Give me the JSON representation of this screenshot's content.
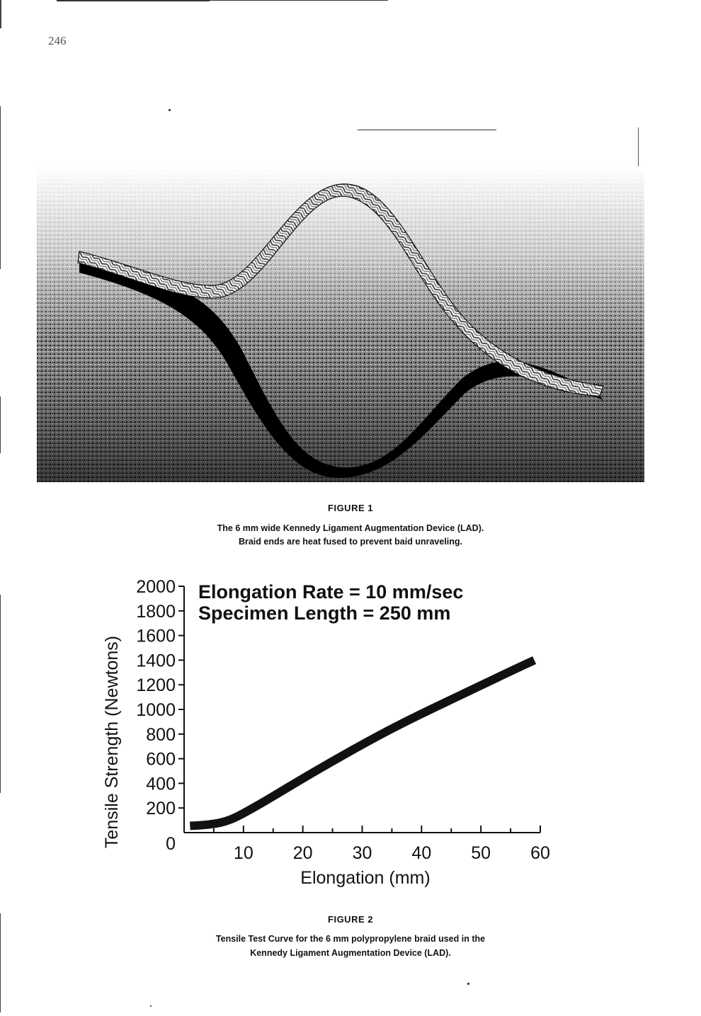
{
  "page": {
    "page_number": "246"
  },
  "figure1": {
    "label": "FIGURE 1",
    "caption_line1": "The 6 mm wide Kennedy Ligament Augmentation Device (LAD).",
    "caption_line2": "Braid ends are heat fused to prevent baid unraveling."
  },
  "figure2": {
    "label": "FIGURE 2",
    "caption_line1": "Tensile Test Curve for the 6 mm polypropylene braid used in the",
    "caption_line2": "Kennedy Ligament Augmentation Device (LAD)."
  },
  "chart_data": {
    "type": "line",
    "annotation_line1": "Elongation Rate = 10 mm/sec",
    "annotation_line2": "Specimen Length = 250 mm",
    "xlabel": "Elongation (mm)",
    "ylabel": "Tensile Strength (Newtons)",
    "xlim": [
      0,
      60
    ],
    "ylim": [
      0,
      2000
    ],
    "x_ticks": [
      "10",
      "20",
      "30",
      "40",
      "50",
      "60"
    ],
    "x_tick_values": [
      10,
      20,
      30,
      40,
      50,
      60
    ],
    "y_zero_label": "0",
    "y_ticks": [
      "200",
      "400",
      "600",
      "800",
      "1000",
      "1200",
      "1400",
      "1600",
      "1800",
      "2000"
    ],
    "y_tick_values": [
      200,
      400,
      600,
      800,
      1000,
      1200,
      1400,
      1600,
      1800,
      2000
    ],
    "series": [
      {
        "x": [
          1,
          3,
          5,
          7,
          9,
          12,
          15,
          20,
          25,
          30,
          35,
          40,
          45,
          50,
          55,
          59
        ],
        "y": [
          55,
          60,
          70,
          90,
          130,
          210,
          295,
          440,
          580,
          715,
          845,
          965,
          1080,
          1195,
          1310,
          1400
        ]
      }
    ],
    "grid": false,
    "line_color": "#111111"
  }
}
